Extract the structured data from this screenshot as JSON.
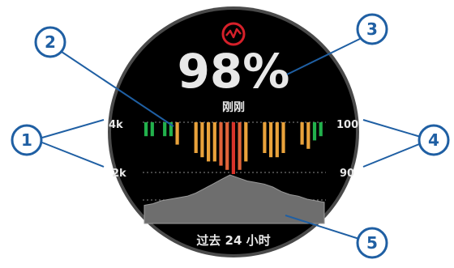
{
  "colors": {
    "accent_red": "#d6202a",
    "bar_green": "#22b14c",
    "bar_orange": "#e9a23b",
    "bar_dark_orange": "#e0643a",
    "bar_red": "#d8332a",
    "callout_blue": "#1f5fa3",
    "callout_fill": "#ffffff",
    "dial_bg": "#000000",
    "area_fill": "#6e6e6e"
  },
  "watch": {
    "icon": "pulse-ox-icon",
    "value": "98%",
    "subtitle": "刚刚",
    "footer": "过去 24 小时",
    "left_axis": {
      "top": "4k",
      "bottom": "2k"
    },
    "right_axis": {
      "top": "100",
      "bottom": "90"
    }
  },
  "callouts": [
    {
      "number": "1"
    },
    {
      "number": "2"
    },
    {
      "number": "3"
    },
    {
      "number": "4"
    },
    {
      "number": "5"
    }
  ],
  "chart_data": {
    "type": "bar",
    "description_values": "SpO2 percent per time slot over last 24 hours, plus elevation area profile",
    "right_axis_ticks": [
      "100",
      "90"
    ],
    "left_axis_ticks": [
      "4k",
      "2k"
    ],
    "spo2_values": [
      99,
      99,
      0,
      99,
      99,
      97,
      0,
      0,
      95,
      94,
      93,
      93,
      92,
      91,
      90,
      91,
      93,
      0,
      0,
      95,
      94,
      94,
      95,
      0,
      0,
      97,
      96,
      98,
      99
    ],
    "elevation_profile": [
      1200,
      1300,
      1500,
      1600,
      1700,
      1800,
      2000,
      2300,
      2600,
      2900,
      3200,
      3000,
      2800,
      2700,
      2600,
      2400,
      2100,
      1900,
      1800,
      1600,
      1500,
      1400
    ]
  }
}
